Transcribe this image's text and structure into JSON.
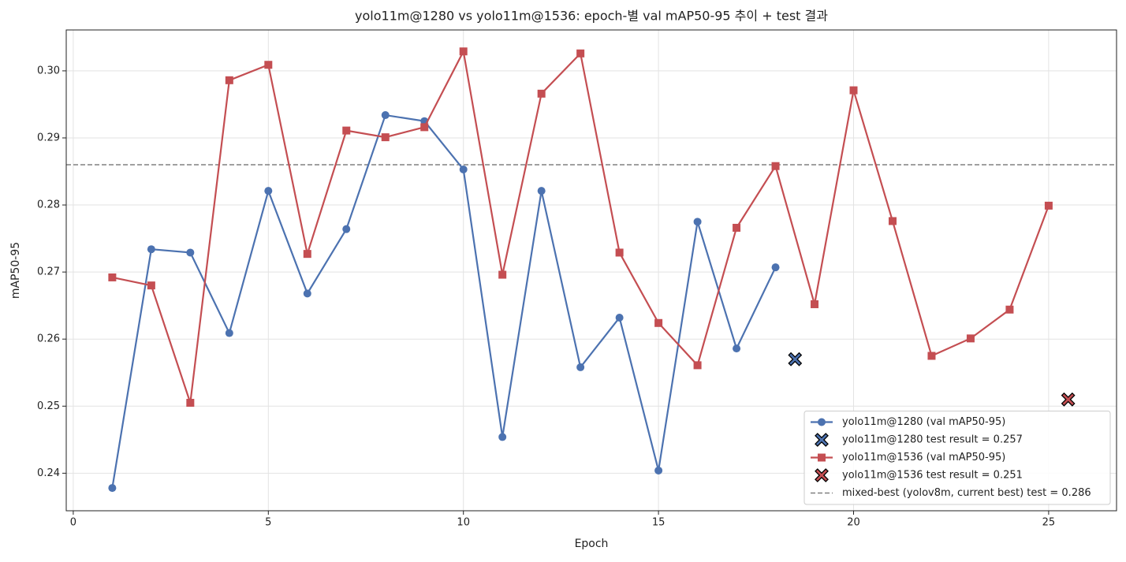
{
  "chart_data": {
    "type": "line",
    "title": "yolo11m@1280 vs yolo11m@1536: epoch-별 val mAP50-95 추이 + test 결과",
    "x_label": "Epoch",
    "y_label": "mAP50-95",
    "xlim": [
      -0.18,
      26.74
    ],
    "ylim": [
      0.2344,
      0.3061
    ],
    "xticks": [
      0,
      5,
      10,
      15,
      20,
      25
    ],
    "yticks": [
      0.24,
      0.25,
      0.26,
      0.27,
      0.28,
      0.29,
      {
        "value": 0.3,
        "label": "0.30"
      }
    ],
    "grid": true,
    "legend": "lower right",
    "series": [
      {
        "name": "yolo11m@1280 (val mAP50-95)",
        "color": "#4c72b0",
        "marker": "circle",
        "line": true,
        "x": [
          1,
          2,
          3,
          4,
          5,
          6,
          7,
          8,
          9,
          10,
          11,
          12,
          13,
          14,
          15,
          16,
          17,
          18
        ],
        "values": [
          0.2378,
          0.2734,
          0.2729,
          0.2609,
          0.2821,
          0.2668,
          0.2764,
          0.2934,
          0.2925,
          0.2853,
          0.2454,
          0.2821,
          0.2558,
          0.2632,
          0.2404,
          0.2775,
          0.2586,
          0.2707
        ]
      },
      {
        "name": "yolo11m@1280 test result = 0.257",
        "color": "#4c72b0",
        "marker": "x",
        "line": false,
        "x": [
          18.5
        ],
        "values": [
          0.257
        ]
      },
      {
        "name": "yolo11m@1536 (val mAP50-95)",
        "color": "#c44e52",
        "marker": "square",
        "line": true,
        "x": [
          1,
          2,
          3,
          4,
          5,
          6,
          7,
          8,
          9,
          10,
          11,
          12,
          13,
          14,
          15,
          16,
          17,
          18,
          19,
          20,
          21,
          22,
          23,
          24,
          25
        ],
        "values": [
          0.2692,
          0.268,
          0.2505,
          0.2986,
          0.3009,
          0.2727,
          0.2911,
          0.2901,
          0.2916,
          0.3029,
          0.2696,
          0.2966,
          0.3026,
          0.2729,
          0.2624,
          0.2561,
          0.2766,
          0.2858,
          0.2652,
          0.2971,
          0.2776,
          0.2575,
          0.2601,
          0.2644,
          0.2799
        ]
      },
      {
        "name": "yolo11m@1536 test result = 0.251",
        "color": "#c44e52",
        "marker": "x",
        "line": false,
        "x": [
          25.5
        ],
        "values": [
          0.251
        ]
      }
    ],
    "hlines": [
      {
        "name": "mixed-best (yolov8m, current best) test = 0.286",
        "color": "#808080",
        "value": 0.286,
        "style": "dashed"
      }
    ]
  }
}
